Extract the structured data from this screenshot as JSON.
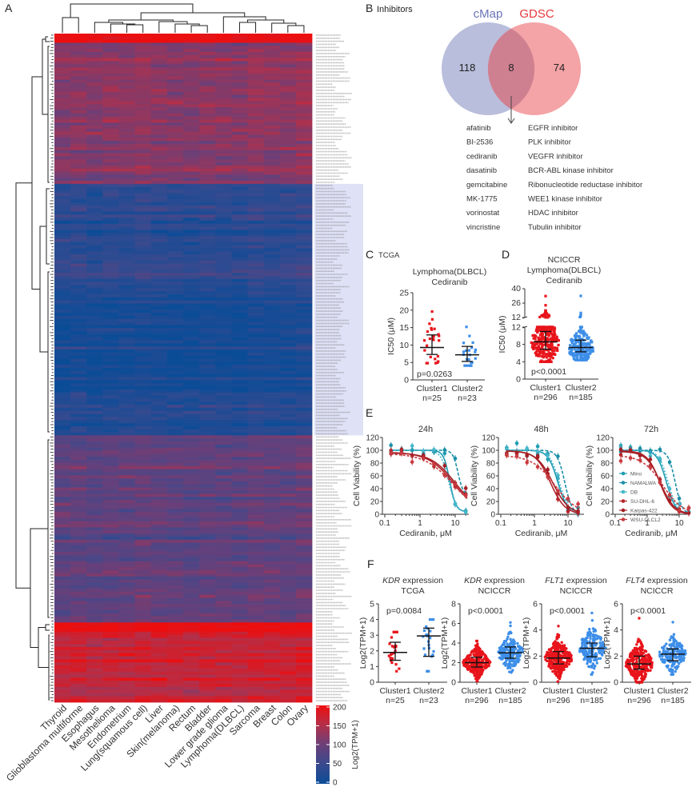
{
  "panel_labels": {
    "A": "A",
    "B": "B",
    "C": "C",
    "D": "D",
    "E": "E",
    "F": "F"
  },
  "venn": {
    "title": "Inhibitors",
    "left": {
      "label": "cMap",
      "count": "118",
      "color": "#6a74b8",
      "fill": "#b9bedc"
    },
    "right": {
      "label": "GDSC",
      "count": "74",
      "color": "#e8383d",
      "fill": "#f4a3a6"
    },
    "overlap": {
      "count": "8",
      "fill": "#cf8090"
    },
    "drugs": [
      {
        "name": "afatinib",
        "target": "EGFR inhibitor"
      },
      {
        "name": "BI-2536",
        "target": "PLK inhibitor"
      },
      {
        "name": "cediranib",
        "target": "VEGFR inhibitor"
      },
      {
        "name": "dasatinib",
        "target": "BCR-ABL kinase inhibitor"
      },
      {
        "name": "gemcitabine",
        "target": "Ribonucleotide reductase inhibitor"
      },
      {
        "name": "MK-1775",
        "target": "WEE1 kinase inhibitor"
      },
      {
        "name": "vorinostat",
        "target": "HDAC inhibitor"
      },
      {
        "name": "vincristine",
        "target": "Tubulin inhibitor"
      }
    ]
  },
  "chart_data": [
    {
      "type": "heatmap",
      "id": "A",
      "columns": [
        "Thyroid",
        "Glioblastoma multiforme",
        "Esophagus",
        "Mesothelioma",
        "Endometrium",
        "Lung(squamous cell)",
        "Liver",
        "Skin(melanoma)",
        "Rectum",
        "Bladder",
        "Lower grade glioma",
        "Lymphoma(DLBCL)",
        "Sarcoma",
        "Breast",
        "Colon",
        "Ovary"
      ],
      "row_groups": [
        {
          "n_rows": 3,
          "mean": 200
        },
        {
          "n_rows": 46,
          "mean": 118
        },
        {
          "n_rows": 36,
          "mean": 35
        },
        {
          "n_rows": 32,
          "mean": 8
        },
        {
          "n_rows": 14,
          "mean": 30
        },
        {
          "n_rows": 61,
          "mean": 88
        },
        {
          "n_rows": 3,
          "mean": 200
        },
        {
          "n_rows": 23,
          "mean": 168
        }
      ],
      "highlighted_row_groups": [
        2,
        3,
        4
      ],
      "colorbar": {
        "label": "Log2(TPM+1)",
        "ticks": [
          "0",
          "50",
          "100",
          "150",
          "200"
        ],
        "range": [
          0,
          200
        ],
        "colors": [
          "#0b4c97",
          "#3a4a8e",
          "#6b3f78",
          "#b3304a",
          "#ee0d0d"
        ]
      }
    },
    {
      "type": "scatter",
      "id": "C",
      "header": "TCGA",
      "title": [
        "Lymphoma(DLBCL)",
        "Cediranib"
      ],
      "ylabel": "IC50 (μM)",
      "ylim": [
        0,
        25
      ],
      "yticks": [
        "0",
        "5",
        "10",
        "15",
        "20",
        "25"
      ],
      "pvalue": "p=0.0263",
      "groups": [
        {
          "name": "Cluster1",
          "n_label": "n=25",
          "n": 25,
          "median": 9.3,
          "q1": 7.3,
          "q3": 12.9,
          "min": 4.8,
          "max": 19.6,
          "color": "#e8141b"
        },
        {
          "name": "Cluster2",
          "n_label": "n=23",
          "n": 23,
          "median": 7.2,
          "q1": 5.3,
          "q3": 9.6,
          "min": 4.1,
          "max": 15.2,
          "color": "#3d8ee8"
        }
      ]
    },
    {
      "type": "scatter",
      "id": "D",
      "title": [
        "NCICCR",
        "Lymphoma(DLBCL)",
        "Cediranib"
      ],
      "ylabel": "IC50 (μM)",
      "ylim": [
        0,
        40
      ],
      "axis_break": 12,
      "yticks_lower": [
        "0",
        "4",
        "8",
        "12"
      ],
      "yticks_upper": [
        "12",
        "26",
        "40"
      ],
      "pvalue": "p<0.0001",
      "groups": [
        {
          "name": "Cluster1",
          "n_label": "n=296",
          "n": 296,
          "median": 8.6,
          "q1": 6.9,
          "q3": 11.0,
          "min": 4.0,
          "max": 39,
          "color": "#e8141b"
        },
        {
          "name": "Cluster2",
          "n_label": "n=185",
          "n": 185,
          "median": 7.3,
          "q1": 6.3,
          "q3": 9.0,
          "min": 4.4,
          "max": 22,
          "color": "#3d8ee8"
        }
      ]
    },
    {
      "type": "line",
      "id": "E",
      "xlabel": "Cediranib, μM",
      "ylabel": "Cell Viability (%)",
      "xscale": "log",
      "xticks": [
        "0.1",
        "1",
        "10"
      ],
      "yticks": [
        "0",
        "20",
        "40",
        "60",
        "80",
        "100",
        "120"
      ],
      "ylim": [
        0,
        120
      ],
      "concentrations": [
        0.15,
        0.3,
        0.6,
        1.25,
        2.5,
        5,
        10,
        20
      ],
      "legend": [
        "Mino",
        "NAMALWA",
        "DB",
        "SU-DHL-6",
        "Karpas-422",
        "WSU-DLCL2"
      ],
      "legend_placement": "inside-left (72h)",
      "series_style": [
        {
          "color": "#1f9db3",
          "dash": "",
          "marker": "circle"
        },
        {
          "color": "#1a8fa6",
          "dash": "4,2",
          "marker": "square"
        },
        {
          "color": "#45b6cc",
          "dash": "2,2",
          "marker": "diamond"
        },
        {
          "color": "#b5232a",
          "dash": "",
          "marker": "circle"
        },
        {
          "color": "#a31f24",
          "dash": "",
          "marker": "square"
        },
        {
          "color": "#c83a3f",
          "dash": "3,2",
          "marker": "diamond"
        }
      ],
      "panels": [
        {
          "title": "24h",
          "series": [
            {
              "name": "Mino",
              "ic50": 7,
              "hill": 5,
              "top": 100,
              "bottom": 4
            },
            {
              "name": "NAMALWA",
              "ic50": 12,
              "hill": 6,
              "top": 100,
              "bottom": 30
            },
            {
              "name": "DB",
              "ic50": 6.5,
              "hill": 4,
              "top": 100,
              "bottom": 3
            },
            {
              "name": "SU-DHL-6",
              "ic50": 9,
              "hill": 1.2,
              "top": 97,
              "bottom": 0
            },
            {
              "name": "Karpas-422",
              "ic50": 9.5,
              "hill": 1.3,
              "top": 96,
              "bottom": 5
            },
            {
              "name": "WSU-DLCL2",
              "ic50": 8.5,
              "hill": 1.1,
              "top": 95,
              "bottom": 0
            }
          ]
        },
        {
          "title": "48h",
          "series": [
            {
              "name": "Mino",
              "ic50": 5,
              "hill": 3,
              "top": 100,
              "bottom": 0
            },
            {
              "name": "NAMALWA",
              "ic50": 8,
              "hill": 4,
              "top": 100,
              "bottom": 0
            },
            {
              "name": "DB",
              "ic50": 5.5,
              "hill": 3,
              "top": 100,
              "bottom": 0
            },
            {
              "name": "SU-DHL-6",
              "ic50": 3,
              "hill": 2,
              "top": 99,
              "bottom": 0
            },
            {
              "name": "Karpas-422",
              "ic50": 3.5,
              "hill": 1.8,
              "top": 99,
              "bottom": 0
            },
            {
              "name": "WSU-DLCL2",
              "ic50": 4,
              "hill": 1.3,
              "top": 92,
              "bottom": 0
            }
          ]
        },
        {
          "title": "72h",
          "series": [
            {
              "name": "Mino",
              "ic50": 4,
              "hill": 3,
              "top": 100,
              "bottom": 0
            },
            {
              "name": "NAMALWA",
              "ic50": 7.5,
              "hill": 4,
              "top": 100,
              "bottom": 0
            },
            {
              "name": "DB",
              "ic50": 4.5,
              "hill": 3,
              "top": 100,
              "bottom": 0
            },
            {
              "name": "SU-DHL-6",
              "ic50": 2.5,
              "hill": 2.2,
              "top": 99,
              "bottom": 0
            },
            {
              "name": "Karpas-422",
              "ic50": 2.6,
              "hill": 2,
              "top": 98,
              "bottom": 0
            },
            {
              "name": "WSU-DLCL2",
              "ic50": 3,
              "hill": 1.4,
              "top": 92,
              "bottom": 0
            }
          ]
        }
      ]
    },
    {
      "type": "scatter",
      "id": "F",
      "ylabel": "Log2(TPM+1)",
      "plots": [
        {
          "gene": "KDR",
          "title_suffix": " expression",
          "cohort": "TCGA",
          "pvalue": "p=0.0084",
          "ylim": [
            0,
            5
          ],
          "yticks": [
            "0",
            "1",
            "2",
            "3",
            "4",
            "5"
          ],
          "groups": [
            {
              "name": "Cluster1",
              "n_label": "n=25",
              "n": 25,
              "median": 1.9,
              "q1": 1.4,
              "q3": 2.55,
              "min": 0.7,
              "max": 3.2,
              "color": "#e8141b"
            },
            {
              "name": "Cluster2",
              "n_label": "n=23",
              "n": 23,
              "median": 2.95,
              "q1": 1.65,
              "q3": 3.45,
              "min": 0.7,
              "max": 4.0,
              "color": "#3d8ee8"
            }
          ]
        },
        {
          "gene": "KDR",
          "title_suffix": " expression",
          "cohort": "NCICCR",
          "pvalue": "p<0.0001",
          "ylim": [
            0,
            8
          ],
          "yticks": [
            "0",
            "2",
            "4",
            "6",
            "8"
          ],
          "groups": [
            {
              "name": "Cluster1",
              "n_label": "n=296",
              "n": 296,
              "median": 2.0,
              "q1": 1.55,
              "q3": 2.55,
              "min": 0.1,
              "max": 4.2,
              "color": "#e8141b"
            },
            {
              "name": "Cluster2",
              "n_label": "n=185",
              "n": 185,
              "median": 3.0,
              "q1": 2.45,
              "q3": 3.6,
              "min": 1.0,
              "max": 6.1,
              "color": "#3d8ee8"
            }
          ]
        },
        {
          "gene": "FLT1",
          "title_suffix": " expression",
          "cohort": "NCICCR",
          "pvalue": "p<0.0001",
          "ylim": [
            0,
            6
          ],
          "yticks": [
            "0",
            "2",
            "4",
            "6"
          ],
          "groups": [
            {
              "name": "Cluster1",
              "n_label": "n=296",
              "n": 296,
              "median": 1.85,
              "q1": 1.4,
              "q3": 2.35,
              "min": 0.05,
              "max": 4.3,
              "color": "#e8141b"
            },
            {
              "name": "Cluster2",
              "n_label": "n=185",
              "n": 185,
              "median": 2.6,
              "q1": 1.95,
              "q3": 3.0,
              "min": 0.6,
              "max": 5.3,
              "color": "#3d8ee8"
            }
          ]
        },
        {
          "gene": "FLT4",
          "title_suffix": " expression",
          "cohort": "NCICCR",
          "pvalue": "p<0.0001",
          "ylim": [
            0,
            6
          ],
          "yticks": [
            "0",
            "2",
            "4",
            "6"
          ],
          "groups": [
            {
              "name": "Cluster1",
              "n_label": "n=296",
              "n": 296,
              "median": 1.4,
              "q1": 1.0,
              "q3": 2.0,
              "min": 0.0,
              "max": 4.9,
              "color": "#e8141b"
            },
            {
              "name": "Cluster2",
              "n_label": "n=185",
              "n": 185,
              "median": 2.15,
              "q1": 1.65,
              "q3": 2.55,
              "min": 0.6,
              "max": 4.6,
              "color": "#3d8ee8"
            }
          ]
        }
      ]
    }
  ]
}
